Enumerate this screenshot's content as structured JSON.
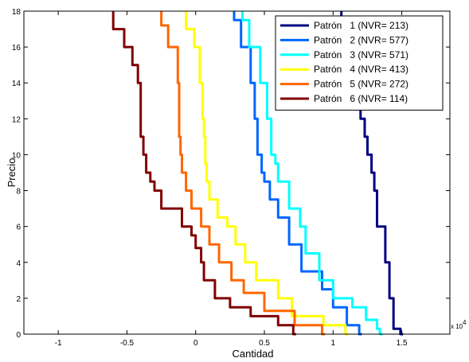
{
  "chart_data": {
    "type": "line",
    "xlabel": "Cantidad",
    "ylabel": "Precio",
    "xlim": [
      -1.25,
      1.85
    ],
    "ylim": [
      0,
      18
    ],
    "x_exponent_label": "x 10",
    "x_exponent_power": "4",
    "xticks": [
      -1,
      -0.5,
      0,
      0.5,
      1,
      1.5
    ],
    "xtick_labels": [
      "-1",
      "-0.5",
      "0",
      "0.5",
      "1",
      "1.5"
    ],
    "yticks": [
      0,
      2,
      4,
      6,
      8,
      10,
      12,
      14,
      16,
      18
    ],
    "ytick_labels": [
      "0",
      "2",
      "4",
      "6",
      "8",
      "10",
      "12",
      "14",
      "16",
      "18"
    ],
    "legend_position": "top-right",
    "series": [
      {
        "name": "Patrón   1 (NVR= 213)",
        "color": "#000080",
        "points": [
          [
            1.51,
            0
          ],
          [
            1.49,
            0.3
          ],
          [
            1.44,
            2
          ],
          [
            1.41,
            4
          ],
          [
            1.38,
            6
          ],
          [
            1.32,
            8
          ],
          [
            1.3,
            9
          ],
          [
            1.28,
            10
          ],
          [
            1.25,
            11
          ],
          [
            1.23,
            12
          ],
          [
            1.2,
            14
          ],
          [
            1.18,
            16
          ],
          [
            1.12,
            17.5
          ],
          [
            1.06,
            18
          ]
        ]
      },
      {
        "name": "Patrón   2 (NVR= 577)",
        "color": "#0066FF",
        "points": [
          [
            1.21,
            0
          ],
          [
            1.19,
            0.5
          ],
          [
            1.1,
            1.5
          ],
          [
            1.0,
            2.5
          ],
          [
            0.92,
            3.5
          ],
          [
            0.77,
            5
          ],
          [
            0.68,
            6.5
          ],
          [
            0.6,
            7.5
          ],
          [
            0.54,
            8.5
          ],
          [
            0.5,
            9
          ],
          [
            0.48,
            10
          ],
          [
            0.45,
            12
          ],
          [
            0.43,
            14
          ],
          [
            0.4,
            16
          ],
          [
            0.33,
            17.5
          ],
          [
            0.28,
            18
          ]
        ]
      },
      {
        "name": "Patrón   3 (NVR= 571)",
        "color": "#00FFFF",
        "points": [
          [
            1.36,
            0
          ],
          [
            1.34,
            0.3
          ],
          [
            1.32,
            0.8
          ],
          [
            1.24,
            1.5
          ],
          [
            1.14,
            2
          ],
          [
            1.0,
            3
          ],
          [
            0.9,
            4.5
          ],
          [
            0.8,
            6
          ],
          [
            0.76,
            7
          ],
          [
            0.68,
            8.5
          ],
          [
            0.6,
            9.5
          ],
          [
            0.58,
            10
          ],
          [
            0.55,
            12
          ],
          [
            0.52,
            14
          ],
          [
            0.47,
            16
          ],
          [
            0.39,
            17.5
          ],
          [
            0.34,
            18
          ]
        ]
      },
      {
        "name": "Patrón   4 (NVR= 413)",
        "color": "#FFFF00",
        "points": [
          [
            1.11,
            0
          ],
          [
            1.09,
            0.5
          ],
          [
            0.93,
            1
          ],
          [
            0.7,
            2
          ],
          [
            0.6,
            3
          ],
          [
            0.44,
            4
          ],
          [
            0.36,
            5
          ],
          [
            0.29,
            6
          ],
          [
            0.23,
            6.5
          ],
          [
            0.16,
            7.5
          ],
          [
            0.1,
            8.5
          ],
          [
            0.08,
            9.5
          ],
          [
            0.07,
            11
          ],
          [
            0.06,
            12
          ],
          [
            0.05,
            14
          ],
          [
            0.03,
            16
          ],
          [
            -0.01,
            17
          ],
          [
            -0.07,
            18
          ]
        ]
      },
      {
        "name": "Patrón   5 (NVR= 272)",
        "color": "#FF6600",
        "points": [
          [
            0.94,
            0
          ],
          [
            0.92,
            0.5
          ],
          [
            0.72,
            1.3
          ],
          [
            0.5,
            2.3
          ],
          [
            0.35,
            3
          ],
          [
            0.26,
            4
          ],
          [
            0.17,
            5
          ],
          [
            0.1,
            6
          ],
          [
            0.04,
            7
          ],
          [
            -0.03,
            8
          ],
          [
            -0.07,
            9
          ],
          [
            -0.1,
            10
          ],
          [
            -0.11,
            11
          ],
          [
            -0.12,
            12
          ],
          [
            -0.12,
            14
          ],
          [
            -0.13,
            16
          ],
          [
            -0.2,
            17.2
          ],
          [
            -0.25,
            18
          ]
        ]
      },
      {
        "name": "Patrón   6 (NVR= 114)",
        "color": "#800000",
        "points": [
          [
            0.73,
            0
          ],
          [
            0.71,
            0.5
          ],
          [
            0.6,
            1
          ],
          [
            0.4,
            1.5
          ],
          [
            0.25,
            2
          ],
          [
            0.14,
            3
          ],
          [
            0.06,
            4
          ],
          [
            0.04,
            4.8
          ],
          [
            0.0,
            5.5
          ],
          [
            -0.03,
            6
          ],
          [
            -0.1,
            7
          ],
          [
            -0.25,
            8
          ],
          [
            -0.3,
            8.5
          ],
          [
            -0.33,
            9
          ],
          [
            -0.36,
            10
          ],
          [
            -0.38,
            11
          ],
          [
            -0.4,
            12
          ],
          [
            -0.4,
            14
          ],
          [
            -0.42,
            15
          ],
          [
            -0.46,
            16
          ],
          [
            -0.52,
            17
          ],
          [
            -0.6,
            18
          ]
        ]
      }
    ]
  }
}
